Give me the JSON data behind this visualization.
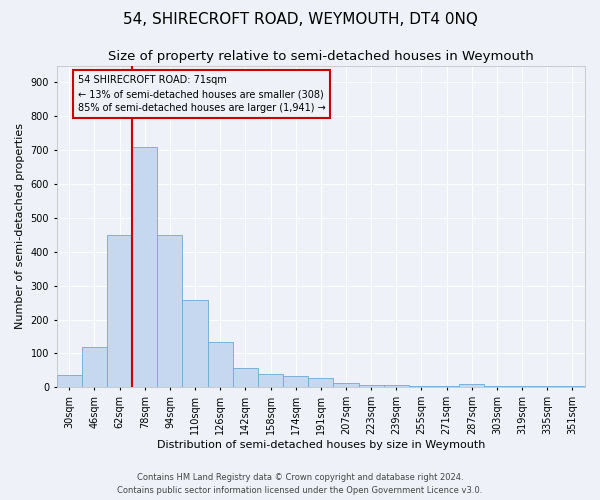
{
  "title": "54, SHIRECROFT ROAD, WEYMOUTH, DT4 0NQ",
  "subtitle": "Size of property relative to semi-detached houses in Weymouth",
  "xlabel": "Distribution of semi-detached houses by size in Weymouth",
  "ylabel": "Number of semi-detached properties",
  "categories": [
    "30sqm",
    "46sqm",
    "62sqm",
    "78sqm",
    "94sqm",
    "110sqm",
    "126sqm",
    "142sqm",
    "158sqm",
    "174sqm",
    "191sqm",
    "207sqm",
    "223sqm",
    "239sqm",
    "255sqm",
    "271sqm",
    "287sqm",
    "303sqm",
    "319sqm",
    "335sqm",
    "351sqm"
  ],
  "values": [
    35,
    120,
    450,
    710,
    450,
    258,
    135,
    57,
    40,
    33,
    28,
    13,
    8,
    7,
    5,
    4,
    10,
    5,
    4,
    3,
    5
  ],
  "bar_color": "#c5d8f0",
  "bar_edge_color": "#6aaad4",
  "vline_color": "#cc0000",
  "vline_x": 2.5,
  "annotation_title": "54 SHIRECROFT ROAD: 71sqm",
  "annotation_line1": "← 13% of semi-detached houses are smaller (308)",
  "annotation_line2": "85% of semi-detached houses are larger (1,941) →",
  "annotation_box_color": "#cc0000",
  "ylim": [
    0,
    950
  ],
  "yticks": [
    0,
    100,
    200,
    300,
    400,
    500,
    600,
    700,
    800,
    900
  ],
  "footer_line1": "Contains HM Land Registry data © Crown copyright and database right 2024.",
  "footer_line2": "Contains public sector information licensed under the Open Government Licence v3.0.",
  "bg_color": "#eef2f8",
  "grid_color": "#ffffff",
  "title_fontsize": 11,
  "subtitle_fontsize": 9.5,
  "axis_label_fontsize": 8,
  "tick_fontsize": 7,
  "annotation_fontsize": 7,
  "footer_fontsize": 6
}
